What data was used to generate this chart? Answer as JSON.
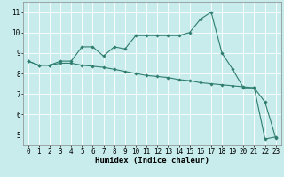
{
  "xlabel": "Humidex (Indice chaleur)",
  "bg_color": "#c8ecec",
  "grid_color": "#ffffff",
  "line_color": "#2e7d6e",
  "x_upper": [
    0,
    1,
    2,
    3,
    4,
    5,
    6,
    7,
    8,
    9,
    10,
    11,
    12,
    13,
    14,
    15,
    16,
    17,
    18,
    19,
    20,
    21,
    22,
    23
  ],
  "y_upper": [
    8.6,
    8.4,
    8.4,
    8.6,
    8.6,
    9.3,
    9.3,
    8.85,
    9.3,
    9.2,
    9.85,
    9.85,
    9.85,
    9.85,
    9.85,
    10.0,
    10.65,
    11.0,
    9.0,
    8.2,
    7.3,
    7.3,
    6.6,
    4.85
  ],
  "x_lower": [
    0,
    1,
    2,
    3,
    4,
    5,
    6,
    7,
    8,
    9,
    10,
    11,
    12,
    13,
    14,
    15,
    16,
    17,
    18,
    19,
    20,
    21,
    22,
    23
  ],
  "y_lower": [
    8.6,
    8.4,
    8.4,
    8.5,
    8.5,
    8.4,
    8.35,
    8.3,
    8.2,
    8.1,
    8.0,
    7.9,
    7.85,
    7.8,
    7.7,
    7.65,
    7.55,
    7.5,
    7.45,
    7.4,
    7.35,
    7.3,
    4.8,
    4.9
  ],
  "xlim": [
    -0.5,
    23.5
  ],
  "ylim": [
    4.5,
    11.5
  ],
  "xticks": [
    0,
    1,
    2,
    3,
    4,
    5,
    6,
    7,
    8,
    9,
    10,
    11,
    12,
    13,
    14,
    15,
    16,
    17,
    18,
    19,
    20,
    21,
    22,
    23
  ],
  "yticks": [
    5,
    6,
    7,
    8,
    9,
    10,
    11
  ],
  "marker": "D",
  "marker_size": 1.8,
  "line_width": 0.8,
  "tick_fontsize": 5.5,
  "xlabel_fontsize": 6.5
}
